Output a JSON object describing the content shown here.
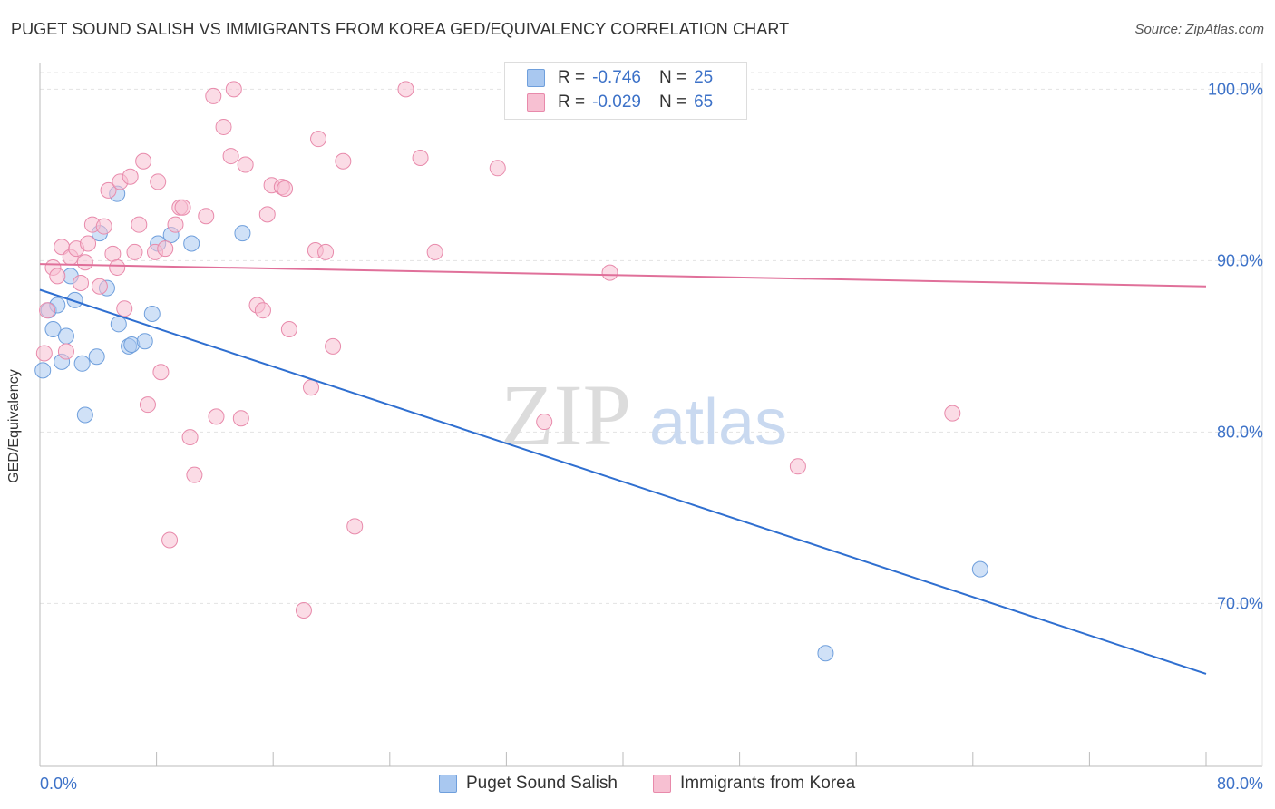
{
  "header": {
    "title": "PUGET SOUND SALISH VS IMMIGRANTS FROM KOREA GED/EQUIVALENCY CORRELATION CHART",
    "source": "Source: ZipAtlas.com"
  },
  "watermark": {
    "zip": "ZIP",
    "atlas": "atlas"
  },
  "legend": {
    "rows": [
      {
        "r_label": "R =",
        "r_value": "-0.746",
        "n_label": "N =",
        "n_value": "25",
        "color": "#a9c8f0",
        "border": "#6f9fdc"
      },
      {
        "r_label": "R =",
        "r_value": "-0.029",
        "n_label": "N =",
        "n_value": "65",
        "color": "#f7c0d2",
        "border": "#e88aab"
      }
    ]
  },
  "bottom_legend": [
    {
      "label": "Puget Sound Salish",
      "color": "#a9c8f0",
      "border": "#6f9fdc"
    },
    {
      "label": "Immigrants from Korea",
      "color": "#f7c0d2",
      "border": "#e88aab"
    }
  ],
  "chart_data": {
    "type": "scatter",
    "title": "PUGET SOUND SALISH VS IMMIGRANTS FROM KOREA GED/EQUIVALENCY CORRELATION CHART",
    "xlabel": "",
    "ylabel": "GED/Equivalency",
    "xlim": [
      0,
      80
    ],
    "ylim": [
      60.5,
      101.5
    ],
    "x_tick_labels": [
      "0.0%",
      "80.0%"
    ],
    "y_ticks": [
      70,
      80,
      90,
      100
    ],
    "y_tick_labels": [
      "70.0%",
      "80.0%",
      "90.0%",
      "100.0%"
    ],
    "grid": true,
    "legend_position": "top-center",
    "series": [
      {
        "name": "Puget Sound Salish",
        "color": "#6f9fdc",
        "fill": "#a9c8f0",
        "trend": {
          "x": [
            0,
            80
          ],
          "y": [
            88.3,
            65.9
          ],
          "color": "#2f6fd0"
        },
        "points": [
          [
            0.2,
            83.6
          ],
          [
            0.6,
            87.1
          ],
          [
            0.9,
            86.0
          ],
          [
            1.2,
            87.4
          ],
          [
            1.5,
            84.1
          ],
          [
            1.8,
            85.6
          ],
          [
            2.1,
            89.1
          ],
          [
            2.4,
            87.7
          ],
          [
            2.9,
            84.0
          ],
          [
            3.1,
            81.0
          ],
          [
            3.9,
            84.4
          ],
          [
            4.1,
            91.6
          ],
          [
            4.6,
            88.4
          ],
          [
            5.3,
            93.9
          ],
          [
            5.4,
            86.3
          ],
          [
            6.1,
            85.0
          ],
          [
            6.3,
            85.1
          ],
          [
            7.2,
            85.3
          ],
          [
            7.7,
            86.9
          ],
          [
            8.1,
            91.0
          ],
          [
            9.0,
            91.5
          ],
          [
            10.4,
            91.0
          ],
          [
            13.9,
            91.6
          ],
          [
            64.5,
            72.0
          ],
          [
            53.9,
            67.1
          ]
        ]
      },
      {
        "name": "Immigrants from Korea",
        "color": "#e88aab",
        "fill": "#f7c0d2",
        "trend": {
          "x": [
            0,
            80
          ],
          "y": [
            89.8,
            88.5
          ],
          "color": "#e0709a"
        },
        "points": [
          [
            0.3,
            84.6
          ],
          [
            0.5,
            87.1
          ],
          [
            0.9,
            89.6
          ],
          [
            1.2,
            89.1
          ],
          [
            1.5,
            90.8
          ],
          [
            1.8,
            84.7
          ],
          [
            2.1,
            90.2
          ],
          [
            2.5,
            90.7
          ],
          [
            2.8,
            88.7
          ],
          [
            3.1,
            89.9
          ],
          [
            3.3,
            91.0
          ],
          [
            3.6,
            92.1
          ],
          [
            4.1,
            88.5
          ],
          [
            4.4,
            92.0
          ],
          [
            4.7,
            94.1
          ],
          [
            5.0,
            90.4
          ],
          [
            5.3,
            89.6
          ],
          [
            5.5,
            94.6
          ],
          [
            5.8,
            87.2
          ],
          [
            6.2,
            94.9
          ],
          [
            6.5,
            90.5
          ],
          [
            6.8,
            92.1
          ],
          [
            7.1,
            95.8
          ],
          [
            7.4,
            81.6
          ],
          [
            7.9,
            90.5
          ],
          [
            8.1,
            94.6
          ],
          [
            8.3,
            83.5
          ],
          [
            8.6,
            90.7
          ],
          [
            8.9,
            73.7
          ],
          [
            9.3,
            92.1
          ],
          [
            9.6,
            93.1
          ],
          [
            9.8,
            93.1
          ],
          [
            10.3,
            79.7
          ],
          [
            10.6,
            77.5
          ],
          [
            11.4,
            92.6
          ],
          [
            11.9,
            99.6
          ],
          [
            12.1,
            80.9
          ],
          [
            12.6,
            97.8
          ],
          [
            13.1,
            96.1
          ],
          [
            13.3,
            100.0
          ],
          [
            13.8,
            80.8
          ],
          [
            14.1,
            95.6
          ],
          [
            14.9,
            87.4
          ],
          [
            15.3,
            87.1
          ],
          [
            15.6,
            92.7
          ],
          [
            15.9,
            94.4
          ],
          [
            16.6,
            94.3
          ],
          [
            16.8,
            94.2
          ],
          [
            17.1,
            86.0
          ],
          [
            18.1,
            69.6
          ],
          [
            18.6,
            82.6
          ],
          [
            18.9,
            90.6
          ],
          [
            19.1,
            97.1
          ],
          [
            19.6,
            90.5
          ],
          [
            20.1,
            85.0
          ],
          [
            20.8,
            95.8
          ],
          [
            21.6,
            74.5
          ],
          [
            25.1,
            100.0
          ],
          [
            26.1,
            96.0
          ],
          [
            27.1,
            90.5
          ],
          [
            31.4,
            95.4
          ],
          [
            34.6,
            80.6
          ],
          [
            39.1,
            89.3
          ],
          [
            62.6,
            81.1
          ],
          [
            52.0,
            78.0
          ]
        ]
      }
    ]
  }
}
